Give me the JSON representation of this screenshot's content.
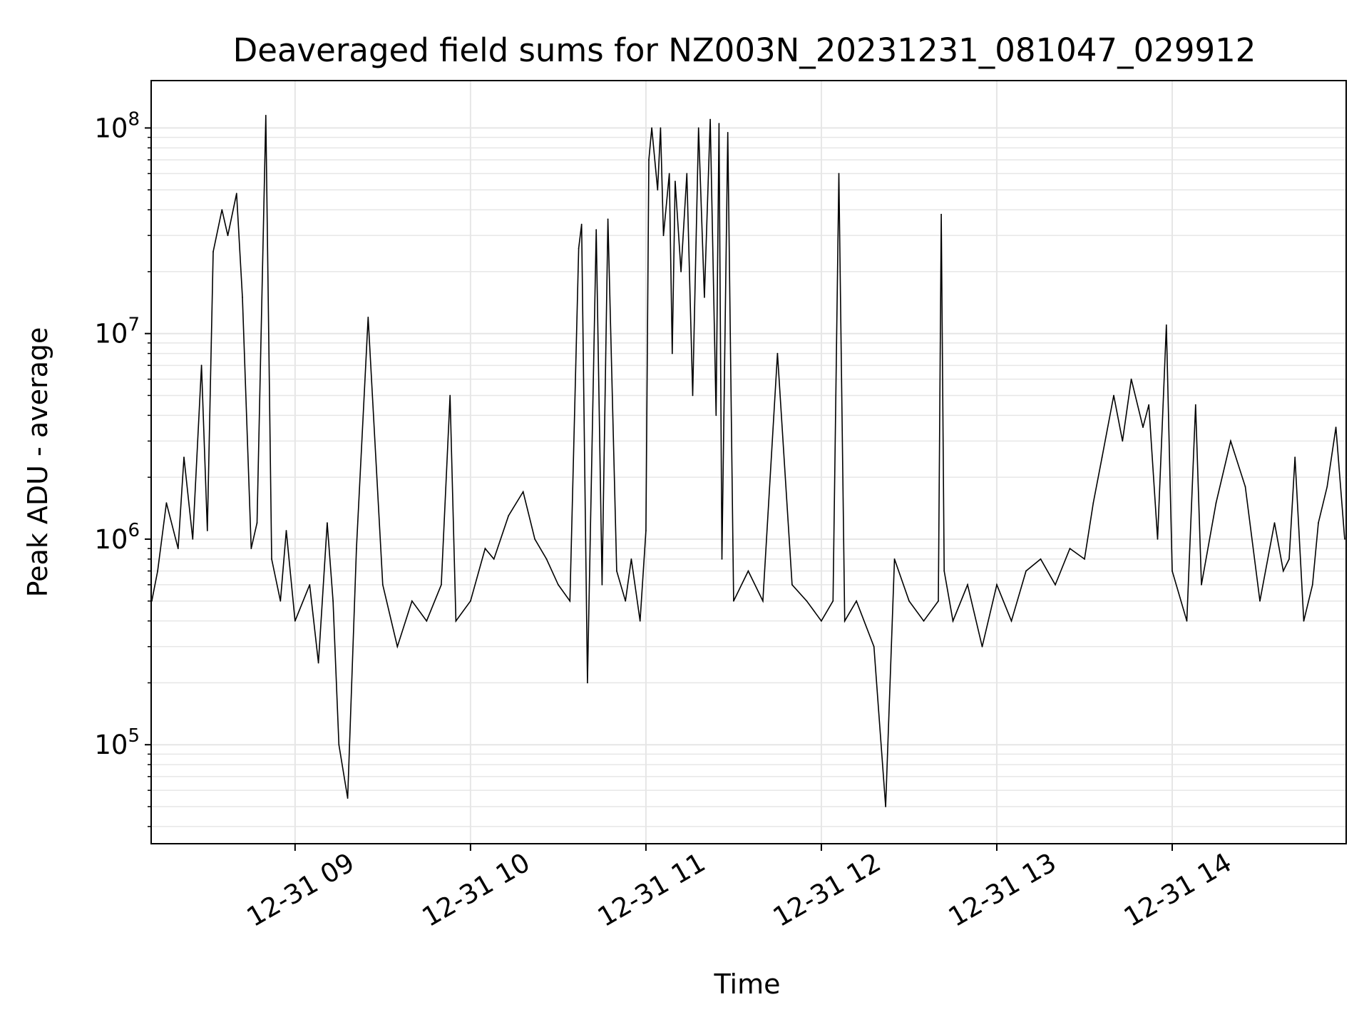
{
  "chart_data": {
    "type": "line",
    "title": "Deaveraged field sums for NZ003N_20231231_081047_029912",
    "xlabel": "Time",
    "ylabel": "Peak ADU - average",
    "y_scale": "log",
    "ylim": [
      33000,
      170000000
    ],
    "xlim": [
      "2023-12-31 08:10:47",
      "2023-12-31 14:59:30"
    ],
    "grid": true,
    "line_color": "#000000",
    "x_ticks": [
      {
        "time": "2023-12-31 09:00",
        "label": "12-31 09"
      },
      {
        "time": "2023-12-31 10:00",
        "label": "12-31 10"
      },
      {
        "time": "2023-12-31 11:00",
        "label": "12-31 11"
      },
      {
        "time": "2023-12-31 12:00",
        "label": "12-31 12"
      },
      {
        "time": "2023-12-31 13:00",
        "label": "12-31 13"
      },
      {
        "time": "2023-12-31 14:00",
        "label": "12-31 14"
      }
    ],
    "y_ticks": [
      {
        "value": 100000,
        "base": "10",
        "exp": "5"
      },
      {
        "value": 1000000,
        "base": "10",
        "exp": "6"
      },
      {
        "value": 10000000,
        "base": "10",
        "exp": "7"
      },
      {
        "value": 100000000,
        "base": "10",
        "exp": "8"
      }
    ],
    "series": [
      {
        "x": [
          "2023-12-31 08:11",
          "2023-12-31 08:13",
          "2023-12-31 08:16",
          "2023-12-31 08:20",
          "2023-12-31 08:22",
          "2023-12-31 08:25",
          "2023-12-31 08:28",
          "2023-12-31 08:30",
          "2023-12-31 08:32",
          "2023-12-31 08:35",
          "2023-12-31 08:37",
          "2023-12-31 08:40",
          "2023-12-31 08:42",
          "2023-12-31 08:45",
          "2023-12-31 08:47",
          "2023-12-31 08:50",
          "2023-12-31 08:52",
          "2023-12-31 08:55",
          "2023-12-31 08:57",
          "2023-12-31 09:00",
          "2023-12-31 09:05",
          "2023-12-31 09:08",
          "2023-12-31 09:11",
          "2023-12-31 09:13",
          "2023-12-31 09:15",
          "2023-12-31 09:18",
          "2023-12-31 09:21",
          "2023-12-31 09:25",
          "2023-12-31 09:30",
          "2023-12-31 09:35",
          "2023-12-31 09:40",
          "2023-12-31 09:45",
          "2023-12-31 09:50",
          "2023-12-31 09:53",
          "2023-12-31 09:55",
          "2023-12-31 10:00",
          "2023-12-31 10:05",
          "2023-12-31 10:08",
          "2023-12-31 10:13",
          "2023-12-31 10:18",
          "2023-12-31 10:22",
          "2023-12-31 10:26",
          "2023-12-31 10:30",
          "2023-12-31 10:34",
          "2023-12-31 10:37",
          "2023-12-31 10:38",
          "2023-12-31 10:40",
          "2023-12-31 10:43",
          "2023-12-31 10:45",
          "2023-12-31 10:47",
          "2023-12-31 10:50",
          "2023-12-31 10:53",
          "2023-12-31 10:55",
          "2023-12-31 10:58",
          "2023-12-31 11:00",
          "2023-12-31 11:01",
          "2023-12-31 11:02",
          "2023-12-31 11:04",
          "2023-12-31 11:05",
          "2023-12-31 11:06",
          "2023-12-31 11:08",
          "2023-12-31 11:09",
          "2023-12-31 11:10",
          "2023-12-31 11:12",
          "2023-12-31 11:14",
          "2023-12-31 11:16",
          "2023-12-31 11:18",
          "2023-12-31 11:20",
          "2023-12-31 11:22",
          "2023-12-31 11:24",
          "2023-12-31 11:25",
          "2023-12-31 11:26",
          "2023-12-31 11:28",
          "2023-12-31 11:30",
          "2023-12-31 11:35",
          "2023-12-31 11:40",
          "2023-12-31 11:45",
          "2023-12-31 11:50",
          "2023-12-31 11:55",
          "2023-12-31 12:00",
          "2023-12-31 12:04",
          "2023-12-31 12:06",
          "2023-12-31 12:08",
          "2023-12-31 12:12",
          "2023-12-31 12:18",
          "2023-12-31 12:22",
          "2023-12-31 12:25",
          "2023-12-31 12:30",
          "2023-12-31 12:35",
          "2023-12-31 12:40",
          "2023-12-31 12:41",
          "2023-12-31 12:42",
          "2023-12-31 12:45",
          "2023-12-31 12:50",
          "2023-12-31 12:55",
          "2023-12-31 13:00",
          "2023-12-31 13:05",
          "2023-12-31 13:10",
          "2023-12-31 13:15",
          "2023-12-31 13:20",
          "2023-12-31 13:25",
          "2023-12-31 13:30",
          "2023-12-31 13:33",
          "2023-12-31 13:36",
          "2023-12-31 13:40",
          "2023-12-31 13:43",
          "2023-12-31 13:46",
          "2023-12-31 13:50",
          "2023-12-31 13:52",
          "2023-12-31 13:55",
          "2023-12-31 13:58",
          "2023-12-31 14:00",
          "2023-12-31 14:05",
          "2023-12-31 14:08",
          "2023-12-31 14:10",
          "2023-12-31 14:15",
          "2023-12-31 14:20",
          "2023-12-31 14:25",
          "2023-12-31 14:30",
          "2023-12-31 14:35",
          "2023-12-31 14:38",
          "2023-12-31 14:40",
          "2023-12-31 14:42",
          "2023-12-31 14:45",
          "2023-12-31 14:48",
          "2023-12-31 14:50",
          "2023-12-31 14:53",
          "2023-12-31 14:56",
          "2023-12-31 14:59"
        ],
        "values": [
          500000,
          700000,
          1500000,
          900000,
          2500000,
          1000000,
          7000000,
          1100000,
          25000000,
          40000000,
          30000000,
          48000000,
          15000000,
          900000,
          1200000,
          115000000,
          800000,
          500000,
          1100000,
          400000,
          600000,
          250000,
          1200000,
          500000,
          100000,
          55000,
          900000,
          12000000,
          600000,
          300000,
          500000,
          400000,
          600000,
          5000000,
          400000,
          500000,
          900000,
          800000,
          1300000,
          1700000,
          1000000,
          800000,
          600000,
          500000,
          26000000,
          34000000,
          200000,
          32000000,
          600000,
          36000000,
          700000,
          500000,
          800000,
          400000,
          1100000,
          70000000,
          100000000,
          50000000,
          100000000,
          30000000,
          60000000,
          8000000,
          55000000,
          20000000,
          60000000,
          5000000,
          100000000,
          15000000,
          110000000,
          4000000,
          105000000,
          800000,
          95000000,
          500000,
          700000,
          500000,
          8000000,
          600000,
          500000,
          400000,
          500000,
          60000000,
          400000,
          500000,
          300000,
          50000,
          800000,
          500000,
          400000,
          500000,
          38000000,
          700000,
          400000,
          600000,
          300000,
          600000,
          400000,
          700000,
          800000,
          600000,
          900000,
          800000,
          1500000,
          2500000,
          5000000,
          3000000,
          6000000,
          3500000,
          4500000,
          1000000,
          11000000,
          700000,
          400000,
          4500000,
          600000,
          1500000,
          3000000,
          1800000,
          500000,
          1200000,
          700000,
          800000,
          2500000,
          400000,
          600000,
          1200000,
          1800000,
          3500000,
          1000000
        ]
      }
    ]
  }
}
